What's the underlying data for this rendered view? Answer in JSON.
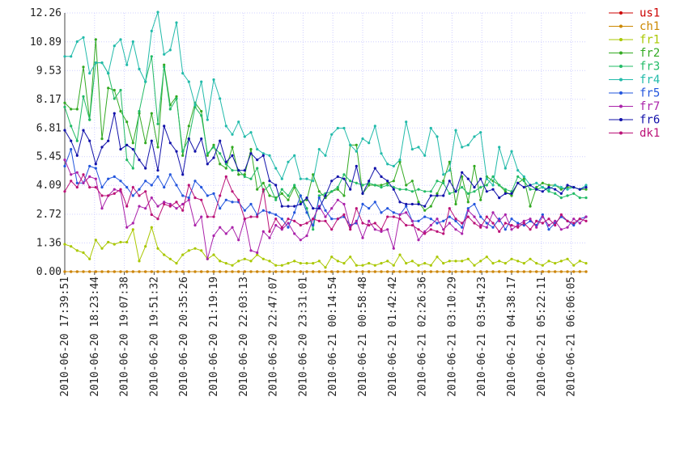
{
  "chart_data": {
    "type": "line",
    "title": "",
    "xlabel": "",
    "ylabel": "",
    "ylim": [
      0,
      12.26
    ],
    "y_ticks": [
      "12.26",
      "10.89",
      "9.53",
      "8.17",
      "6.81",
      "5.45",
      "4.09",
      "2.72",
      "1.36",
      "0.00"
    ],
    "y_tick_values": [
      12.26,
      10.89,
      9.53,
      8.17,
      6.81,
      5.45,
      4.09,
      2.72,
      1.36,
      0.0
    ],
    "grid": true,
    "legend_position": "right",
    "x_tick_labels": [
      "2010-06-20 17:39:51",
      "2010-06-20 18:23:44",
      "2010-06-20 19:07:38",
      "2010-06-20 19:51:32",
      "2010-06-20 20:35:26",
      "2010-06-20 21:19:19",
      "2010-06-20 22:03:13",
      "2010-06-20 22:47:07",
      "2010-06-20 23:31:01",
      "2010-06-21 00:14:54",
      "2010-06-21 00:58:48",
      "2010-06-21 01:42:42",
      "2010-06-21 02:26:36",
      "2010-06-21 03:10:29",
      "2010-06-21 03:54:23",
      "2010-06-21 04:38:17",
      "2010-06-21 05:22:11",
      "2010-06-21 06:06:05"
    ],
    "series": [
      {
        "name": "us1",
        "color": "#cc0000",
        "values": [
          0.0,
          0.0,
          0.0,
          0.0,
          0.0,
          0.0,
          0.0,
          0.0,
          0.0,
          0.0,
          0.0,
          0.0,
          0.0,
          0.0,
          0.0,
          0.0,
          0.0,
          0.0,
          0.0,
          0.0,
          0.0,
          0.0,
          0.0,
          0.0,
          0.0,
          0.0,
          0.0,
          0.0,
          0.0,
          0.0,
          0.0,
          0.0,
          0.0,
          0.0,
          0.0,
          0.0,
          0.0,
          0.0,
          0.0,
          0.0,
          0.0,
          0.0,
          0.0,
          0.0,
          0.0,
          0.0,
          0.0,
          0.0,
          0.0,
          0.0,
          0.0,
          0.0,
          0.0,
          0.0,
          0.0,
          0.0,
          0.0,
          0.0,
          0.0,
          0.0,
          0.0,
          0.0,
          0.0,
          0.0,
          0.0,
          0.0,
          0.0,
          0.0,
          0.0,
          0.0,
          0.0,
          0.0,
          0.0,
          0.0,
          0.0,
          0.0,
          0.0,
          0.0,
          0.0,
          0.0,
          0.0,
          0.0,
          0.0,
          0.0,
          0.0
        ]
      },
      {
        "name": "ch1",
        "color": "#cc8800",
        "values": [
          0.0,
          0.0,
          0.0,
          0.0,
          0.0,
          0.0,
          0.0,
          0.0,
          0.0,
          0.0,
          0.0,
          0.0,
          0.0,
          0.0,
          0.0,
          0.0,
          0.0,
          0.0,
          0.0,
          0.0,
          0.0,
          0.0,
          0.0,
          0.0,
          0.0,
          0.0,
          0.0,
          0.0,
          0.0,
          0.0,
          0.0,
          0.0,
          0.0,
          0.0,
          0.0,
          0.0,
          0.0,
          0.0,
          0.0,
          0.0,
          0.0,
          0.0,
          0.0,
          0.0,
          0.0,
          0.0,
          0.0,
          0.0,
          0.0,
          0.0,
          0.0,
          0.0,
          0.0,
          0.0,
          0.0,
          0.0,
          0.0,
          0.0,
          0.0,
          0.0,
          0.0,
          0.0,
          0.0,
          0.0,
          0.0,
          0.0,
          0.0,
          0.0,
          0.0,
          0.0,
          0.0,
          0.0,
          0.0,
          0.0,
          0.0,
          0.0,
          0.0,
          0.0,
          0.0,
          0.0,
          0.0,
          0.0,
          0.0,
          0.0,
          0.0
        ]
      },
      {
        "name": "fr1",
        "color": "#aac800",
        "values": [
          1.3,
          1.2,
          1.0,
          0.9,
          0.6,
          1.5,
          1.1,
          1.4,
          1.3,
          1.4,
          1.4,
          2.0,
          0.5,
          1.2,
          2.1,
          1.1,
          0.8,
          0.6,
          0.4,
          0.8,
          1.0,
          1.1,
          1.0,
          0.6,
          0.8,
          0.5,
          0.4,
          0.3,
          0.5,
          0.6,
          0.5,
          0.8,
          0.6,
          0.5,
          0.3,
          0.3,
          0.4,
          0.5,
          0.4,
          0.4,
          0.4,
          0.5,
          0.2,
          0.7,
          0.5,
          0.4,
          0.7,
          0.3,
          0.3,
          0.4,
          0.3,
          0.4,
          0.5,
          0.3,
          0.8,
          0.4,
          0.5,
          0.3,
          0.4,
          0.3,
          0.7,
          0.4,
          0.5,
          0.5,
          0.5,
          0.6,
          0.3,
          0.5,
          0.7,
          0.4,
          0.5,
          0.4,
          0.6,
          0.5,
          0.4,
          0.6,
          0.4,
          0.3,
          0.5,
          0.4,
          0.5,
          0.6,
          0.3,
          0.5,
          0.4
        ]
      },
      {
        "name": "fr2",
        "color": "#33aa22",
        "values": [
          8.0,
          7.7,
          7.7,
          9.7,
          7.2,
          11.0,
          6.3,
          8.7,
          8.6,
          7.6,
          7.1,
          6.1,
          7.5,
          6.1,
          7.5,
          5.9,
          9.8,
          7.9,
          8.3,
          5.5,
          6.9,
          8.0,
          7.6,
          5.5,
          6.0,
          5.1,
          4.9,
          5.9,
          4.6,
          4.6,
          5.8,
          3.9,
          4.2,
          3.6,
          3.5,
          3.7,
          3.4,
          4.0,
          3.3,
          3.4,
          4.6,
          3.8,
          3.5,
          3.8,
          3.9,
          3.6,
          6.0,
          6.0,
          3.7,
          4.1,
          4.1,
          4.1,
          4.2,
          4.3,
          5.2,
          4.1,
          4.3,
          3.3,
          2.9,
          3.1,
          3.7,
          4.3,
          5.2,
          3.2,
          4.5,
          3.3,
          5.0,
          3.4,
          4.5,
          4.3,
          4.1,
          3.8,
          3.6,
          4.2,
          4.4,
          3.1,
          4.0,
          4.2,
          4.1,
          4.1,
          3.9,
          4.0,
          4.0,
          3.9,
          3.9
        ]
      },
      {
        "name": "fr3",
        "color": "#22bb66",
        "values": [
          7.8,
          6.9,
          6.2,
          8.3,
          7.2,
          9.9,
          9.9,
          9.4,
          8.2,
          8.6,
          5.3,
          4.9,
          7.6,
          9.0,
          10.2,
          7.0,
          9.7,
          7.7,
          8.2,
          5.7,
          6.3,
          7.8,
          7.4,
          5.6,
          5.9,
          5.6,
          5.1,
          4.8,
          4.8,
          4.5,
          4.4,
          4.9,
          3.8,
          4.1,
          3.4,
          3.9,
          3.6,
          4.1,
          3.6,
          3.0,
          2.0,
          3.6,
          3.7,
          3.8,
          4.0,
          4.6,
          4.3,
          4.2,
          4.1,
          4.2,
          4.1,
          4.0,
          4.1,
          4.0,
          3.9,
          3.9,
          3.8,
          3.9,
          3.8,
          3.8,
          4.3,
          4.2,
          3.7,
          3.8,
          4.0,
          3.7,
          3.8,
          4.0,
          4.1,
          4.5,
          4.1,
          3.9,
          3.8,
          4.5,
          4.3,
          3.9,
          3.9,
          4.0,
          3.8,
          3.7,
          3.5,
          3.6,
          3.7,
          3.5,
          3.5
        ]
      },
      {
        "name": "fr4",
        "color": "#22bbaa",
        "values": [
          10.2,
          10.2,
          10.9,
          11.1,
          9.4,
          9.9,
          9.9,
          9.4,
          10.7,
          11.0,
          9.8,
          10.9,
          9.6,
          9.0,
          11.4,
          12.3,
          10.3,
          10.5,
          11.8,
          9.4,
          9.0,
          7.9,
          9.0,
          7.2,
          9.1,
          8.2,
          6.9,
          6.5,
          7.1,
          6.4,
          6.6,
          5.8,
          5.6,
          5.5,
          4.9,
          4.4,
          5.2,
          5.5,
          4.4,
          4.4,
          4.3,
          5.8,
          5.5,
          6.5,
          6.8,
          6.8,
          6.0,
          5.7,
          6.3,
          6.1,
          6.9,
          5.6,
          5.1,
          5.0,
          5.3,
          7.1,
          5.8,
          5.9,
          5.5,
          6.8,
          6.4,
          4.6,
          4.8,
          6.7,
          5.9,
          6.0,
          6.4,
          6.6,
          4.4,
          4.1,
          5.9,
          4.9,
          5.7,
          4.8,
          4.5,
          4.1,
          4.2,
          4.0,
          3.9,
          4.1,
          4.0,
          3.9,
          4.0,
          3.9,
          4.1
        ]
      },
      {
        "name": "fr5",
        "color": "#2255dd",
        "values": [
          5.0,
          5.8,
          4.2,
          4.2,
          5.0,
          4.9,
          4.0,
          4.4,
          4.5,
          4.3,
          4.0,
          3.6,
          3.9,
          4.3,
          4.1,
          4.5,
          4.0,
          4.6,
          4.1,
          3.6,
          3.5,
          4.3,
          4.0,
          3.6,
          3.7,
          3.0,
          3.4,
          3.3,
          3.3,
          2.9,
          3.2,
          2.7,
          2.9,
          2.8,
          2.7,
          2.5,
          2.1,
          2.8,
          3.6,
          2.8,
          2.2,
          3.5,
          2.9,
          2.5,
          2.5,
          2.6,
          2.2,
          2.3,
          3.2,
          3.0,
          3.3,
          2.8,
          3.0,
          2.8,
          2.7,
          3.1,
          2.4,
          2.4,
          2.6,
          2.5,
          2.3,
          2.4,
          2.6,
          2.4,
          2.1,
          3.0,
          3.2,
          2.6,
          2.3,
          2.1,
          2.5,
          2.0,
          2.5,
          2.3,
          2.2,
          2.4,
          2.2,
          2.7,
          2.0,
          2.3,
          2.6,
          2.4,
          2.2,
          2.5,
          2.6
        ]
      },
      {
        "name": "fr7",
        "color": "#aa22aa",
        "values": [
          5.3,
          4.6,
          4.7,
          4.2,
          4.5,
          4.4,
          3.0,
          3.6,
          3.9,
          3.8,
          2.1,
          2.3,
          3.1,
          3.0,
          3.5,
          3.1,
          3.3,
          3.2,
          3.0,
          3.2,
          3.4,
          2.2,
          2.6,
          0.6,
          1.7,
          2.1,
          1.8,
          2.1,
          1.5,
          2.5,
          1.0,
          0.9,
          1.9,
          1.6,
          2.2,
          2.0,
          2.3,
          1.8,
          1.5,
          1.7,
          2.5,
          3.1,
          2.6,
          3.0,
          3.4,
          3.2,
          2.1,
          2.4,
          1.6,
          2.4,
          2.0,
          1.9,
          2.0,
          1.1,
          2.7,
          2.8,
          2.4,
          1.5,
          1.9,
          2.2,
          2.5,
          2.0,
          2.3,
          2.0,
          1.8,
          2.9,
          2.6,
          2.2,
          2.1,
          2.8,
          2.4,
          2.7,
          2.0,
          2.2,
          2.4,
          2.5,
          2.1,
          2.6,
          2.2,
          2.4,
          2.0,
          2.1,
          2.5,
          2.3,
          2.6
        ]
      },
      {
        "name": "fr6",
        "color": "#1111aa",
        "values": [
          6.7,
          6.2,
          5.5,
          6.7,
          6.2,
          5.1,
          5.9,
          6.2,
          7.5,
          5.8,
          6.0,
          5.8,
          5.3,
          4.9,
          6.2,
          4.8,
          6.9,
          6.1,
          5.7,
          4.6,
          6.3,
          5.7,
          6.3,
          5.1,
          5.4,
          6.2,
          5.2,
          5.5,
          4.8,
          4.8,
          5.6,
          5.3,
          5.5,
          4.3,
          4.1,
          3.1,
          3.1,
          3.1,
          3.2,
          3.5,
          3.0,
          3.0,
          3.6,
          4.3,
          4.5,
          4.4,
          3.9,
          5.0,
          3.7,
          4.3,
          4.9,
          4.5,
          4.3,
          3.9,
          3.3,
          3.2,
          3.2,
          3.2,
          3.1,
          3.6,
          3.6,
          3.6,
          4.3,
          3.8,
          4.7,
          4.4,
          4.0,
          4.4,
          3.8,
          3.9,
          3.5,
          3.7,
          3.7,
          4.2,
          4.0,
          4.1,
          3.9,
          3.8,
          4.0,
          3.9,
          3.7,
          4.1,
          4.0,
          3.9,
          4.0
        ]
      },
      {
        "name": "dk1",
        "color": "#bb1177",
        "values": [
          3.8,
          4.3,
          4.0,
          4.6,
          4.0,
          4.0,
          3.6,
          3.6,
          3.7,
          3.9,
          3.1,
          4.0,
          3.6,
          3.8,
          2.7,
          2.5,
          3.2,
          3.1,
          3.3,
          2.9,
          4.1,
          3.5,
          3.4,
          2.6,
          2.6,
          3.6,
          4.5,
          3.8,
          3.4,
          2.5,
          2.6,
          2.6,
          3.9,
          1.9,
          2.5,
          2.1,
          2.5,
          2.4,
          2.2,
          2.3,
          2.5,
          2.4,
          2.4,
          2.0,
          2.5,
          2.7,
          2.0,
          3.0,
          2.3,
          2.2,
          2.3,
          2.0,
          2.6,
          2.6,
          2.5,
          2.2,
          2.2,
          2.0,
          1.8,
          2.0,
          1.9,
          1.8,
          3.0,
          2.5,
          2.3,
          2.6,
          2.3,
          2.1,
          2.6,
          2.3,
          1.9,
          2.3,
          2.2,
          2.1,
          2.3,
          2.0,
          2.4,
          2.3,
          2.5,
          2.2,
          2.7,
          2.4,
          2.3,
          2.5,
          2.4
        ]
      }
    ]
  }
}
